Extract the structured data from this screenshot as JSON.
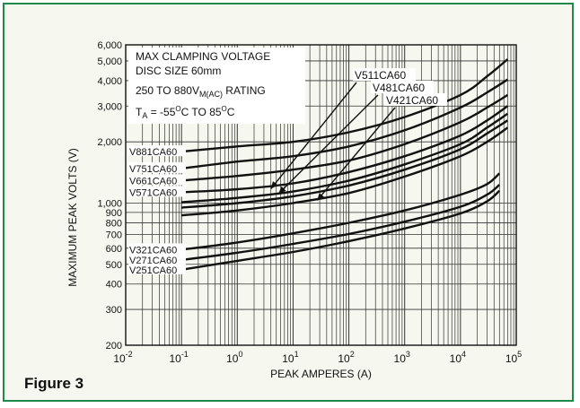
{
  "figure_label": "Figure 3",
  "chart_data": {
    "type": "line",
    "title_lines": [
      "MAX CLAMPING VOLTAGE",
      "DISC SIZE 60mm"
    ],
    "rating": {
      "prefix": "250 TO 880V",
      "subscript": "M(AC)",
      "suffix": " RATING"
    },
    "temperature": {
      "a": "T",
      "a_sub": "A",
      "b": " = -55",
      "c": "C TO 85",
      "d": "C",
      "sup": "O"
    },
    "xlabel": "PEAK AMPERES (A)",
    "ylabel": "MAXIMUM PEAK VOLTS (V)",
    "x_scale": "log",
    "y_scale": "log",
    "xlim": [
      0.01,
      100000
    ],
    "ylim": [
      200,
      6000
    ],
    "x_ticks": [
      {
        "base": "10",
        "exp": "-2"
      },
      {
        "base": "10",
        "exp": "-1"
      },
      {
        "base": "10",
        "exp": "0"
      },
      {
        "base": "10",
        "exp": "1"
      },
      {
        "base": "10",
        "exp": "2"
      },
      {
        "base": "10",
        "exp": "3"
      },
      {
        "base": "10",
        "exp": "4"
      },
      {
        "base": "10",
        "exp": "5"
      }
    ],
    "y_ticks": [
      {
        "value": 6000,
        "label": "6,000"
      },
      {
        "value": 5000,
        "label": "5,000"
      },
      {
        "value": 4000,
        "label": "4,000"
      },
      {
        "value": 3000,
        "label": "3,000"
      },
      {
        "value": 2000,
        "label": "2,000"
      },
      {
        "value": 1000,
        "label": "1,000"
      },
      {
        "value": 900,
        "label": "900"
      },
      {
        "value": 800,
        "label": "800"
      },
      {
        "value": 700,
        "label": "700"
      },
      {
        "value": 600,
        "label": "600"
      },
      {
        "value": 500,
        "label": "500"
      },
      {
        "value": 400,
        "label": "400"
      },
      {
        "value": 300,
        "label": "300"
      },
      {
        "value": 200,
        "label": "200"
      }
    ],
    "grid": true,
    "line_color": "#111111",
    "series": [
      {
        "name": "V881CA60",
        "label_side": "left",
        "points": [
          [
            0.1,
            1790
          ],
          [
            1,
            1900
          ],
          [
            10,
            2000
          ],
          [
            100,
            2230
          ],
          [
            1000,
            2650
          ],
          [
            10000,
            3400
          ],
          [
            30000,
            4200
          ],
          [
            70000,
            5100
          ]
        ]
      },
      {
        "name": "V751CA60",
        "label_side": "left",
        "points": [
          [
            0.1,
            1480
          ],
          [
            1,
            1600
          ],
          [
            10,
            1700
          ],
          [
            100,
            1900
          ],
          [
            1000,
            2280
          ],
          [
            10000,
            2950
          ],
          [
            30000,
            3500
          ],
          [
            70000,
            4050
          ]
        ]
      },
      {
        "name": "V661CA60",
        "label_side": "left",
        "points": [
          [
            0.1,
            1290
          ],
          [
            1,
            1360
          ],
          [
            10,
            1460
          ],
          [
            100,
            1620
          ],
          [
            1000,
            1950
          ],
          [
            10000,
            2500
          ],
          [
            30000,
            2950
          ],
          [
            70000,
            3400
          ]
        ]
      },
      {
        "name": "V571CA60",
        "label_side": "left",
        "points": [
          [
            0.1,
            1130
          ],
          [
            1,
            1170
          ],
          [
            10,
            1250
          ],
          [
            100,
            1420
          ],
          [
            1000,
            1700
          ],
          [
            10000,
            2150
          ],
          [
            30000,
            2550
          ],
          [
            70000,
            3000
          ]
        ]
      },
      {
        "name": "V511CA60",
        "label_side": "top",
        "points": [
          [
            0.1,
            1010
          ],
          [
            1,
            1060
          ],
          [
            10,
            1140
          ],
          [
            100,
            1290
          ],
          [
            1000,
            1550
          ],
          [
            10000,
            1950
          ],
          [
            30000,
            2350
          ],
          [
            70000,
            2750
          ]
        ]
      },
      {
        "name": "V481CA60",
        "label_side": "top",
        "points": [
          [
            0.1,
            950
          ],
          [
            1,
            1000
          ],
          [
            10,
            1080
          ],
          [
            100,
            1220
          ],
          [
            1000,
            1460
          ],
          [
            10000,
            1840
          ],
          [
            30000,
            2200
          ],
          [
            70000,
            2550
          ]
        ]
      },
      {
        "name": "V421CA60",
        "label_side": "top",
        "points": [
          [
            0.1,
            870
          ],
          [
            1,
            920
          ],
          [
            10,
            1000
          ],
          [
            100,
            1120
          ],
          [
            1000,
            1350
          ],
          [
            10000,
            1700
          ],
          [
            30000,
            2000
          ],
          [
            70000,
            2350
          ]
        ]
      },
      {
        "name": "V321CA60",
        "label_side": "left",
        "points": [
          [
            0.1,
            590
          ],
          [
            1,
            640
          ],
          [
            10,
            710
          ],
          [
            100,
            800
          ],
          [
            1000,
            920
          ],
          [
            10000,
            1100
          ],
          [
            30000,
            1240
          ],
          [
            50000,
            1400
          ]
        ]
      },
      {
        "name": "V271CA60",
        "label_side": "left",
        "points": [
          [
            0.1,
            525
          ],
          [
            1,
            570
          ],
          [
            10,
            630
          ],
          [
            100,
            705
          ],
          [
            1000,
            810
          ],
          [
            10000,
            960
          ],
          [
            30000,
            1100
          ],
          [
            50000,
            1230
          ]
        ]
      },
      {
        "name": "V251CA60",
        "label_side": "left",
        "points": [
          [
            0.1,
            470
          ],
          [
            1,
            520
          ],
          [
            10,
            575
          ],
          [
            100,
            650
          ],
          [
            1000,
            750
          ],
          [
            10000,
            890
          ],
          [
            30000,
            1020
          ],
          [
            50000,
            1150
          ]
        ]
      }
    ]
  }
}
